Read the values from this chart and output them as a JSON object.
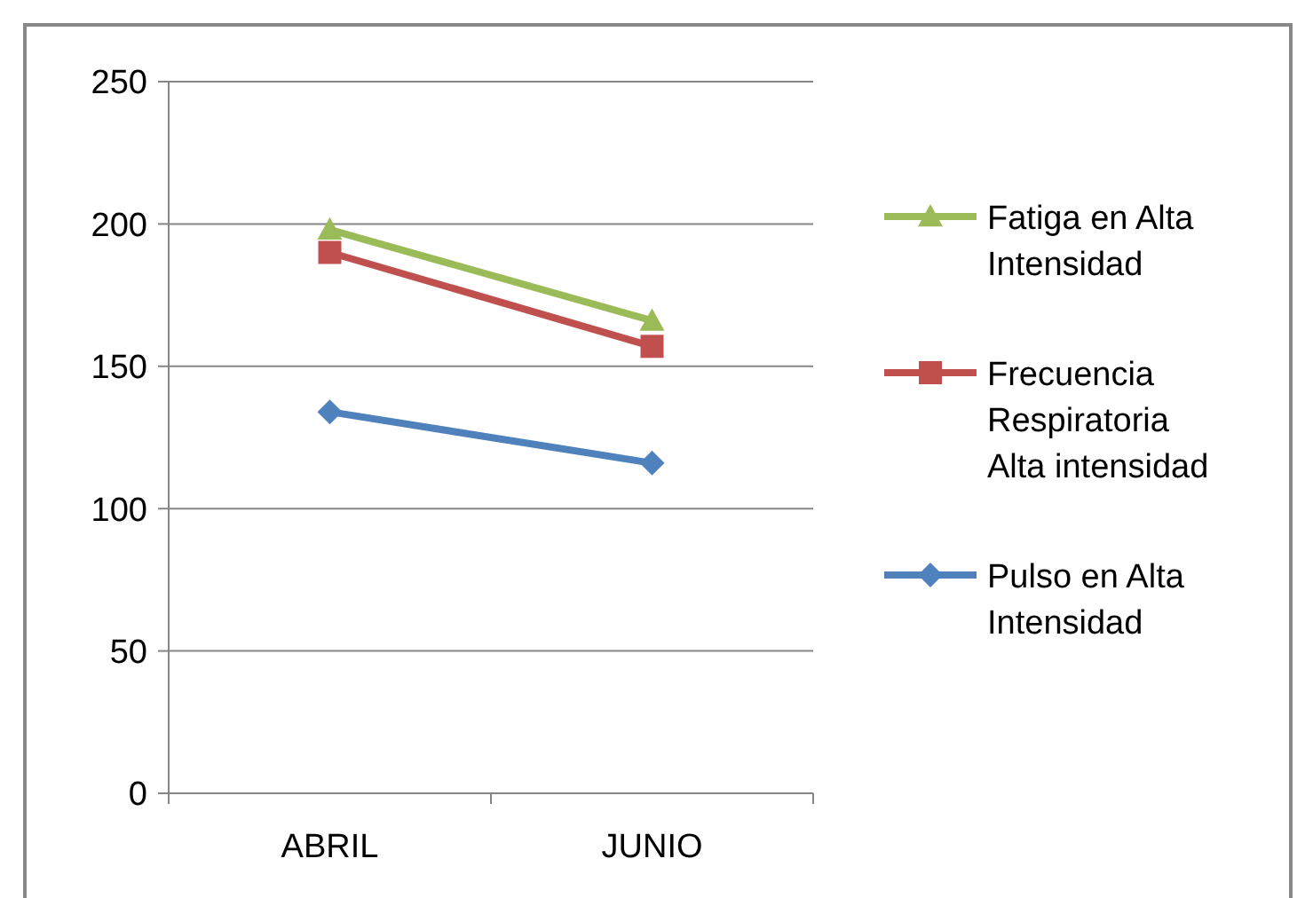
{
  "chart_data": {
    "type": "line",
    "categories": [
      "ABRIL",
      "JUNIO"
    ],
    "series": [
      {
        "name": "Fatiga en Alta Intensidad",
        "color": "#9bbb59",
        "marker": "triangle",
        "values": [
          198,
          166
        ]
      },
      {
        "name": "Frecuencia Respiratoria Alta intensidad",
        "color": "#c0504d",
        "marker": "square",
        "values": [
          190,
          157
        ]
      },
      {
        "name": "Pulso en Alta Intensidad",
        "color": "#4f81bd",
        "marker": "diamond",
        "values": [
          134,
          116
        ]
      }
    ],
    "ylim": [
      0,
      250
    ],
    "yticks": [
      0,
      50,
      100,
      150,
      200,
      250
    ],
    "grid": "y",
    "legend": "right",
    "line_style": "solid"
  }
}
